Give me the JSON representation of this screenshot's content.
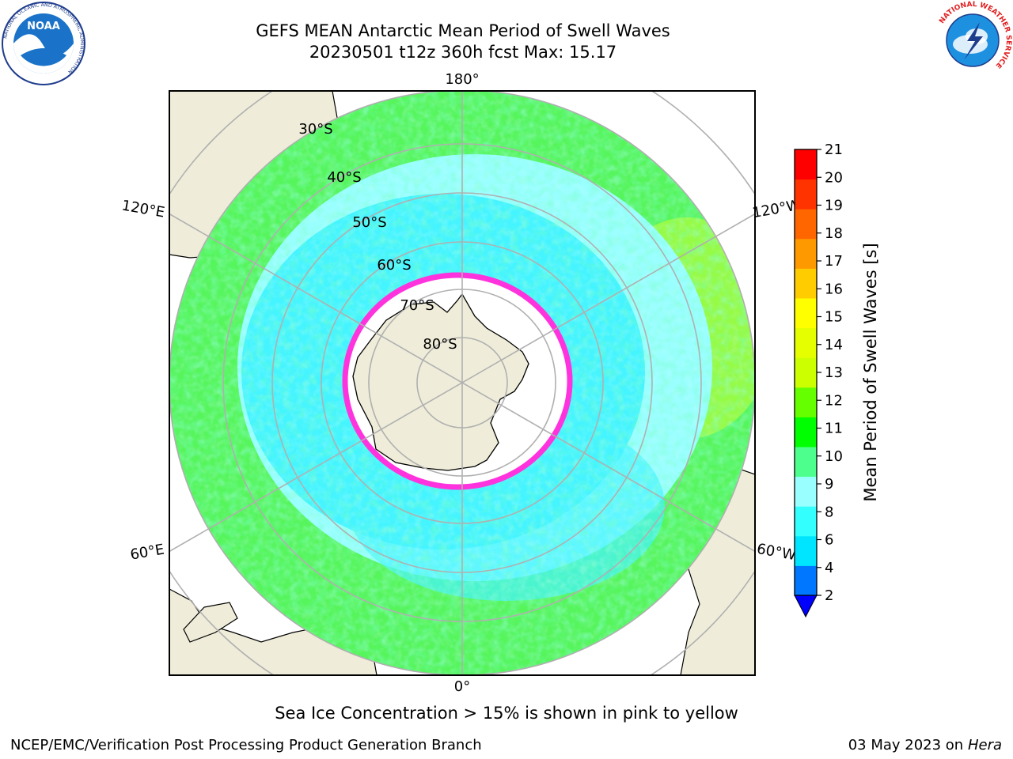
{
  "header": {
    "title_line1": "GEFS MEAN Antarctic Mean Period of Swell Waves",
    "title_line2": "20230501 t12z 360h fcst   Max: 15.17"
  },
  "logos": {
    "noaa_text": "NOAA",
    "noaa_ring": "NATIONAL OCEANIC AND ATMOSPHERIC ADMINISTRATION",
    "noaa_ring_bottom": "U.S. DEPARTMENT OF COMMERCE",
    "nws_ring": "NATIONAL WEATHER SERVICE"
  },
  "map": {
    "projection": "south-polar-stereographic",
    "meridian_labels": {
      "top": "180°",
      "bottom": "0°",
      "upper_left": "120°E",
      "lower_left": "60°E",
      "upper_right": "120°W",
      "lower_right": "60°W"
    },
    "latitude_labels": [
      "30°S",
      "40°S",
      "50°S",
      "60°S",
      "70°S",
      "80°S"
    ],
    "colors": {
      "land": "#efedd9",
      "sea_ice_edge": "#ff33dd",
      "ice_interior": "#ffffff",
      "grid": "#b0b0b0"
    }
  },
  "colorbar": {
    "label": "Mean Period of Swell Waves [s]",
    "ticks": [
      "2",
      "4",
      "6",
      "8",
      "9",
      "10",
      "11",
      "12",
      "13",
      "14",
      "15",
      "16",
      "17",
      "18",
      "19",
      "20",
      "21"
    ],
    "colors": [
      "#0077ff",
      "#00e5ff",
      "#33ffff",
      "#99ffff",
      "#4dff8c",
      "#00ff00",
      "#66ff00",
      "#ccff00",
      "#e5ff00",
      "#ffff00",
      "#ffcc00",
      "#ff9900",
      "#ff6600",
      "#ff3300",
      "#ff0000"
    ],
    "extend_color": "#0000ff"
  },
  "footer": {
    "sea_ice_note": "Sea Ice Concentration > 15% is shown in pink to yellow",
    "credit": "NCEP/EMC/Verification Post Processing Product Generation Branch",
    "date": "03 May 2023 on",
    "machine": "Hera"
  }
}
